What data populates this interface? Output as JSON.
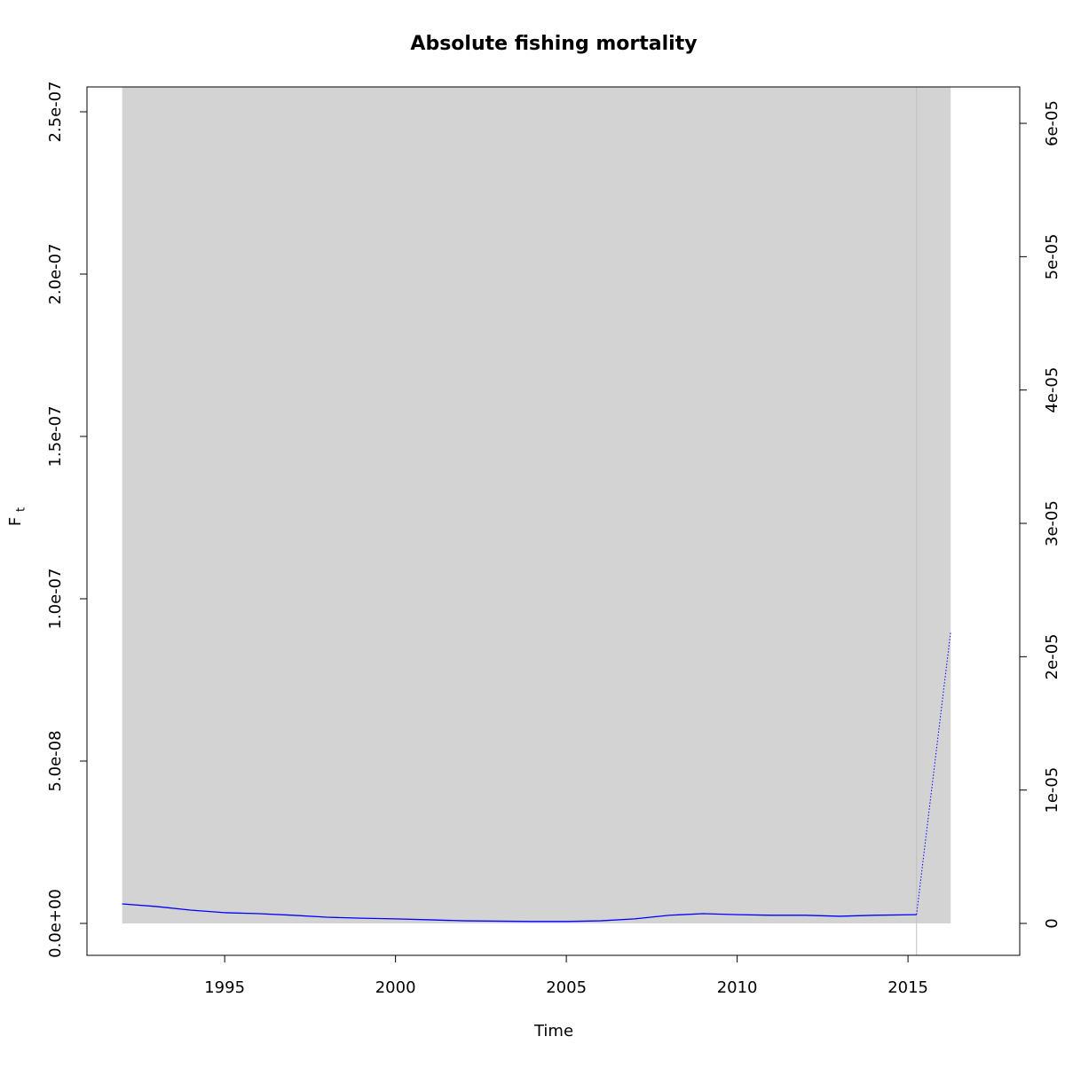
{
  "chart_data": {
    "type": "line",
    "title": "Absolute fishing mortality",
    "x_label": "Time",
    "y_label": "F",
    "y_label_subscript": "t",
    "xlim": [
      1990.97,
      2018.27
    ],
    "xticks": [
      1995,
      2000,
      2005,
      2010,
      2015
    ],
    "ylim": [
      -9.84e-09,
      2.5765e-07
    ],
    "yticks": [
      {
        "value": 0,
        "label": "0.0e+00"
      },
      {
        "value": 5e-08,
        "label": "5.0e-08"
      },
      {
        "value": 1e-07,
        "label": "1.0e-07"
      },
      {
        "value": 1.5e-07,
        "label": "1.5e-07"
      },
      {
        "value": 2e-07,
        "label": "2.0e-07"
      },
      {
        "value": 2.5e-07,
        "label": "2.5e-07"
      }
    ],
    "y2lim": [
      -2.395e-06,
      6.273e-05
    ],
    "y2ticks": [
      0,
      {
        "value": 1e-05,
        "label": "1e-05"
      },
      {
        "value": 2e-05,
        "label": "2e-05"
      },
      {
        "value": 3e-05,
        "label": "3e-05"
      },
      {
        "value": 4e-05,
        "label": "4e-05"
      },
      {
        "value": 5e-05,
        "label": "5e-05"
      },
      {
        "value": 6e-05,
        "label": "6e-05"
      }
    ],
    "band": {
      "color": "#d3d3d3",
      "x": [
        1992,
        2016.25
      ],
      "lower": [
        0,
        0
      ],
      "upper": [
        2.6e-07,
        2.6e-07
      ]
    },
    "vline": {
      "x": 2015.25,
      "color": "#c0c0c0"
    },
    "series": [
      {
        "color": "#0000ff",
        "dash": false,
        "x": [
          1992,
          1993,
          1994,
          1995,
          1996,
          1997,
          1998,
          1999,
          2000,
          2001,
          2002,
          2003,
          2004,
          2005,
          2006,
          2007,
          2008,
          2009,
          2010,
          2011,
          2012,
          2013,
          2014,
          2015.25
        ],
        "values": [
          6e-09,
          5.2e-09,
          4.1e-09,
          3.3e-09,
          3e-09,
          2.5e-09,
          1.9e-09,
          1.6e-09,
          1.4e-09,
          1.1e-09,
          8e-10,
          7e-10,
          6e-10,
          6e-10,
          8e-10,
          1.4e-09,
          2.5e-09,
          3e-09,
          2.7e-09,
          2.5e-09,
          2.5e-09,
          2.2e-09,
          2.5e-09,
          2.7e-09
        ]
      },
      {
        "color": "#0000ff",
        "dash": true,
        "x": [
          2015.25,
          2016.25
        ],
        "values": [
          2.7e-09,
          9e-08
        ]
      }
    ]
  }
}
